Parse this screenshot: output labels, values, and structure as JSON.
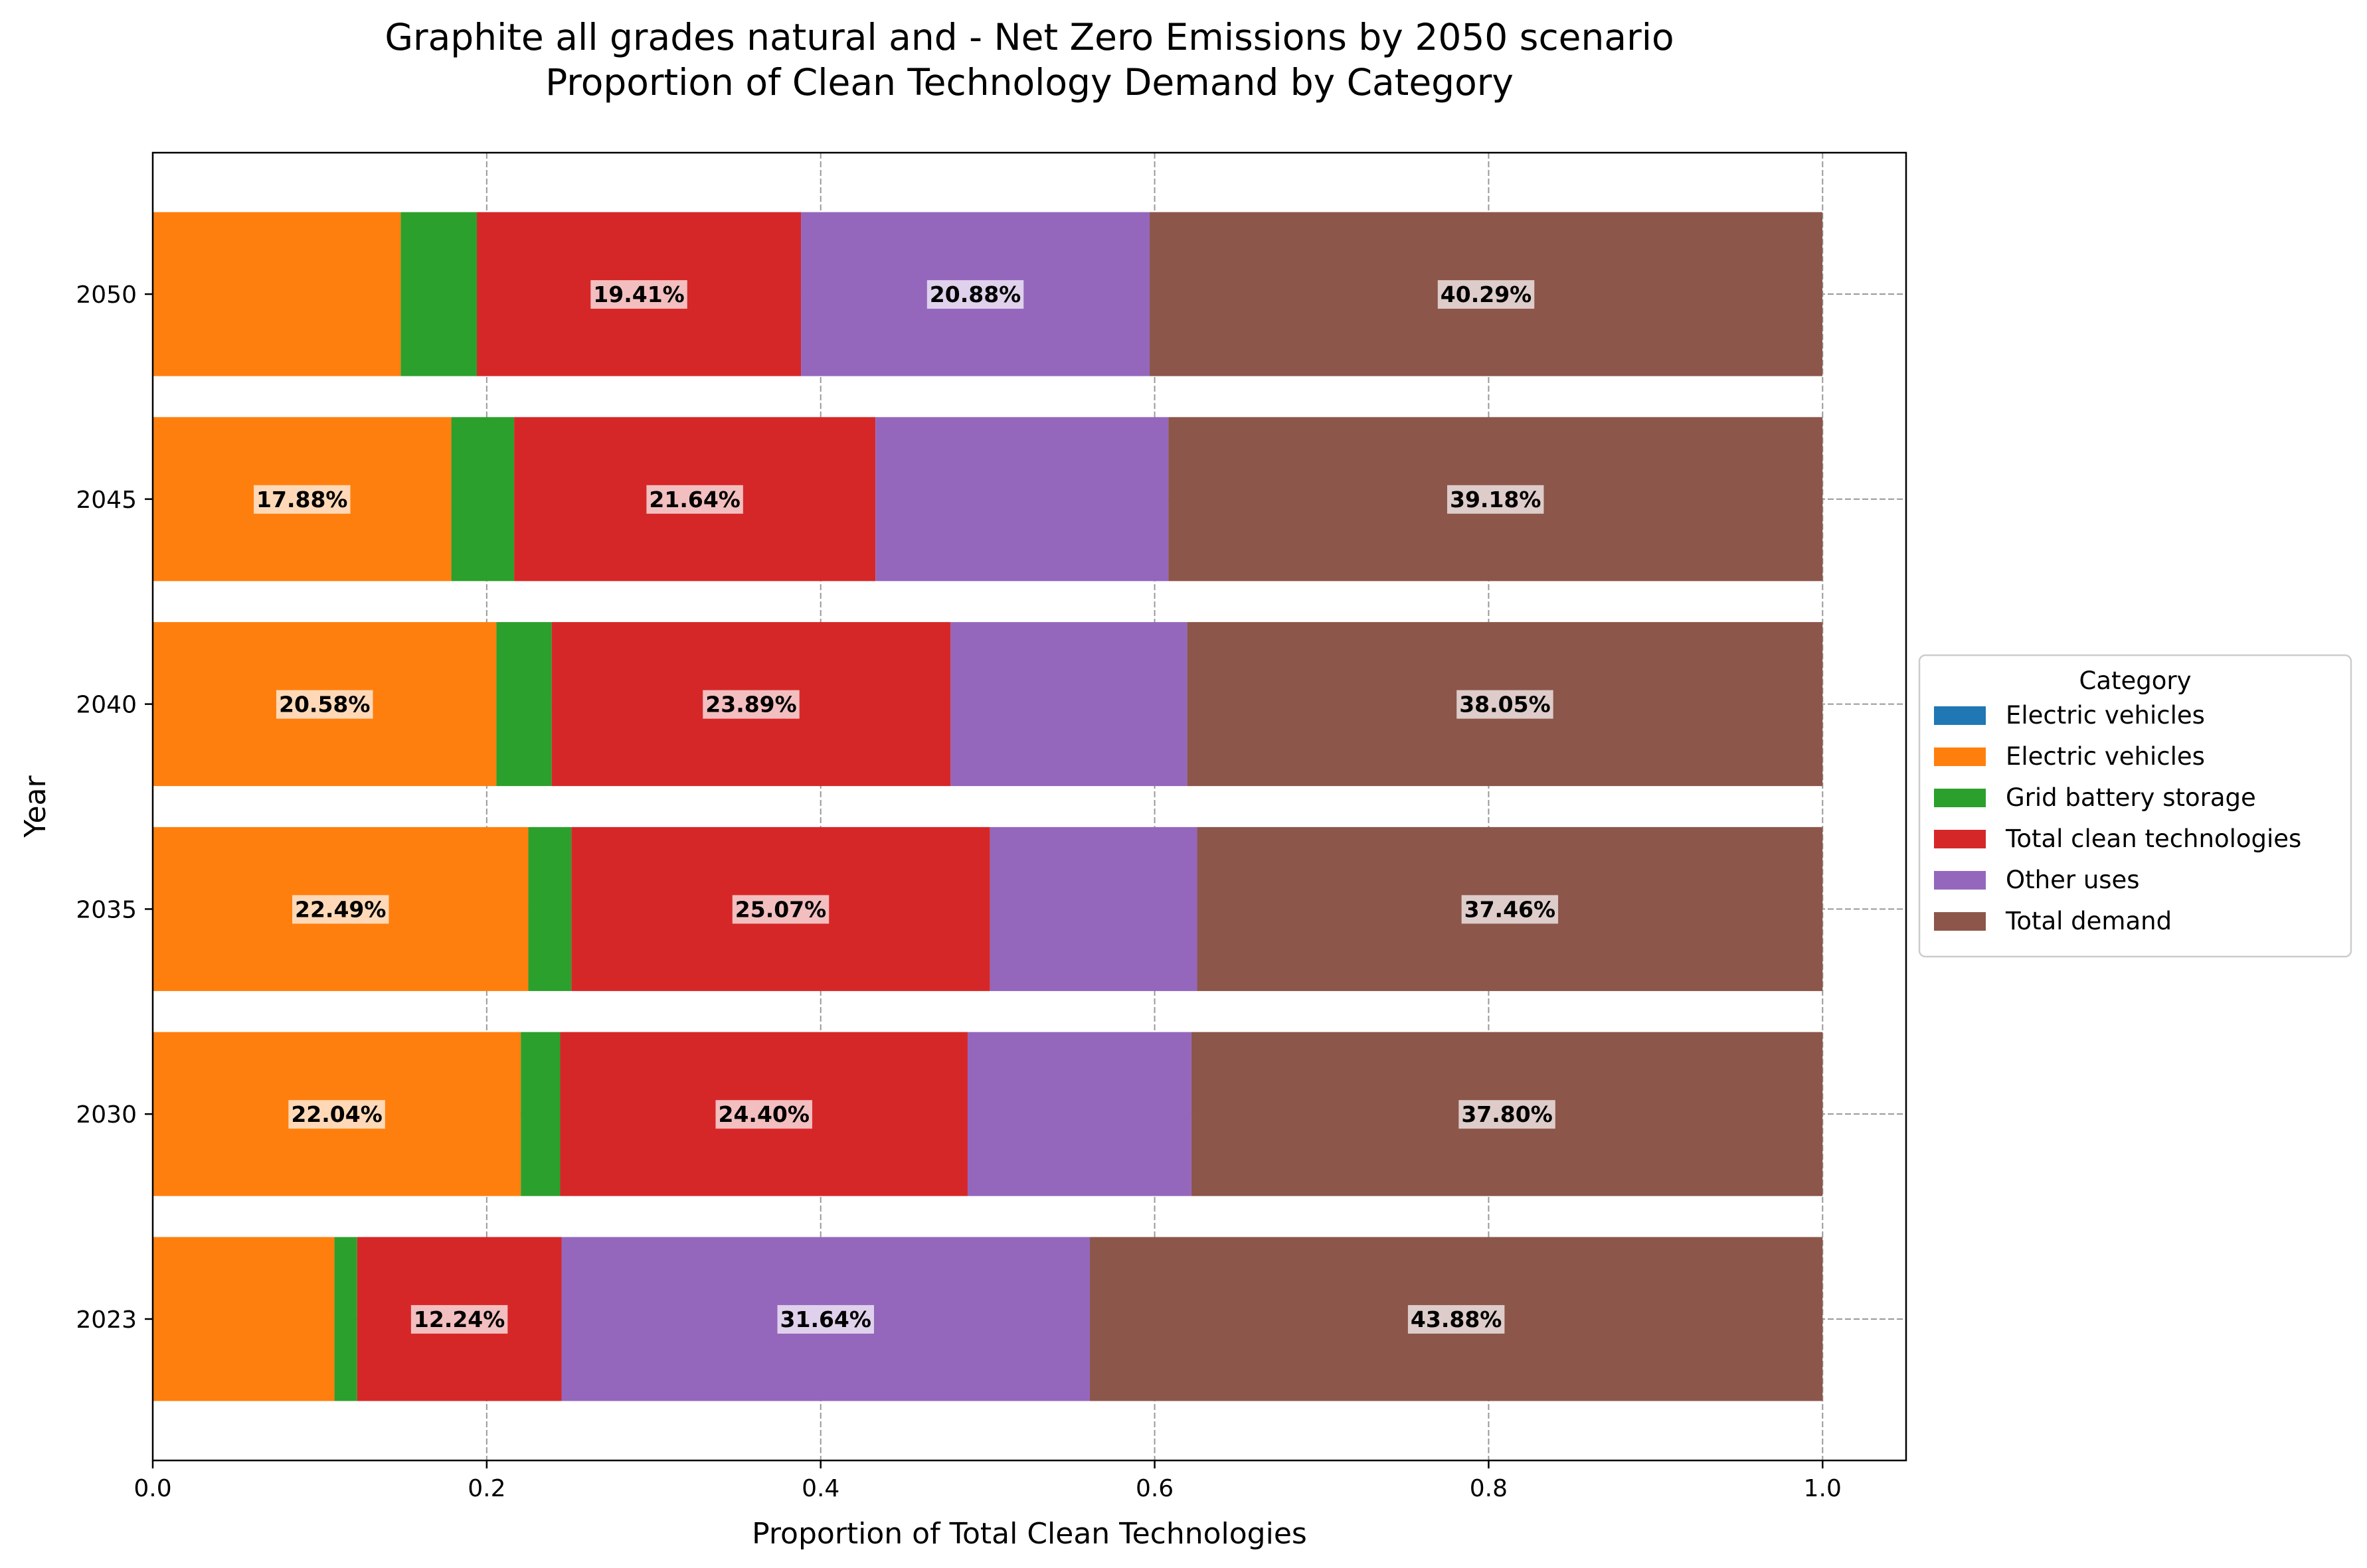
{
  "chart_data": {
    "type": "bar",
    "orientation": "horizontal",
    "stacked": true,
    "title": "Graphite all grades natural and - Net Zero Emissions by 2050 scenario",
    "subtitle": "Proportion of Clean Technology Demand by Category",
    "xlabel": "Proportion of Total Clean Technologies",
    "ylabel": "Year",
    "xlim": [
      0,
      1.05
    ],
    "xticks": [
      0.0,
      0.2,
      0.4,
      0.6,
      0.8,
      1.0
    ],
    "xtick_labels": [
      "0.0",
      "0.2",
      "0.4",
      "0.6",
      "0.8",
      "1.0"
    ],
    "grid": true,
    "legend_title": "Category",
    "legend_position": "right",
    "categories": [
      "2023",
      "2030",
      "2035",
      "2040",
      "2045",
      "2050"
    ],
    "series": [
      {
        "name": "Electric vehicles",
        "color": "#1f77b4",
        "values": [
          0,
          0,
          0,
          0,
          0,
          0
        ]
      },
      {
        "name": "Electric vehicles",
        "color": "#ff7f0e",
        "values": [
          0.1088,
          0.2204,
          0.2249,
          0.2058,
          0.1788,
          0.1485
        ]
      },
      {
        "name": "Grid battery storage",
        "color": "#2ca02c",
        "values": [
          0.0136,
          0.0236,
          0.0258,
          0.0331,
          0.0376,
          0.0456
        ]
      },
      {
        "name": "Total clean technologies",
        "color": "#d62728",
        "values": [
          0.1224,
          0.244,
          0.2507,
          0.2389,
          0.2164,
          0.1941
        ]
      },
      {
        "name": "Other uses",
        "color": "#9467bd",
        "values": [
          0.3164,
          0.134,
          0.124,
          0.1417,
          0.1754,
          0.2088
        ]
      },
      {
        "name": "Total demand",
        "color": "#8c564b",
        "values": [
          0.4388,
          0.378,
          0.3746,
          0.3805,
          0.3918,
          0.4029
        ]
      }
    ],
    "data_labels": [
      {
        "category": "2023",
        "series_index": 3,
        "text": "12.24%"
      },
      {
        "category": "2023",
        "series_index": 4,
        "text": "31.64%"
      },
      {
        "category": "2023",
        "series_index": 5,
        "text": "43.88%"
      },
      {
        "category": "2030",
        "series_index": 1,
        "text": "22.04%"
      },
      {
        "category": "2030",
        "series_index": 3,
        "text": "24.40%"
      },
      {
        "category": "2030",
        "series_index": 5,
        "text": "37.80%"
      },
      {
        "category": "2035",
        "series_index": 1,
        "text": "22.49%"
      },
      {
        "category": "2035",
        "series_index": 3,
        "text": "25.07%"
      },
      {
        "category": "2035",
        "series_index": 5,
        "text": "37.46%"
      },
      {
        "category": "2040",
        "series_index": 1,
        "text": "20.58%"
      },
      {
        "category": "2040",
        "series_index": 3,
        "text": "23.89%"
      },
      {
        "category": "2040",
        "series_index": 5,
        "text": "38.05%"
      },
      {
        "category": "2045",
        "series_index": 1,
        "text": "17.88%"
      },
      {
        "category": "2045",
        "series_index": 3,
        "text": "21.64%"
      },
      {
        "category": "2045",
        "series_index": 5,
        "text": "39.18%"
      },
      {
        "category": "2050",
        "series_index": 3,
        "text": "19.41%"
      },
      {
        "category": "2050",
        "series_index": 4,
        "text": "20.88%"
      },
      {
        "category": "2050",
        "series_index": 5,
        "text": "40.29%"
      }
    ]
  }
}
